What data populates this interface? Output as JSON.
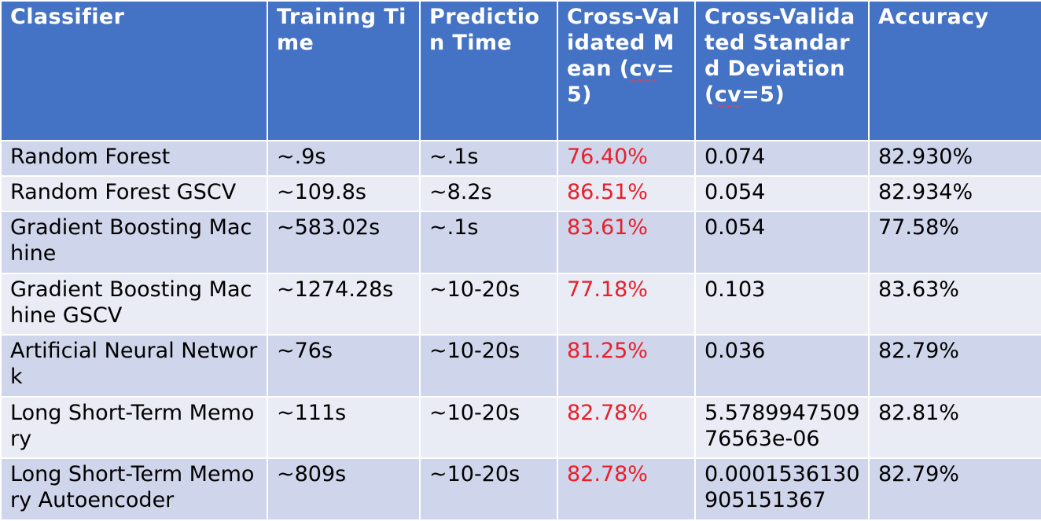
{
  "table": {
    "headers": {
      "classifier": "Classifier",
      "training_time": "Training Time",
      "prediction_time": "Prediction Time",
      "cv_mean_prefix": "Cross-Validated Mean (",
      "cv_mean_cv": "cv",
      "cv_mean_suffix": "=5)",
      "cv_std_prefix": "Cross-Validated Standard Deviation (",
      "cv_std_cv": "cv",
      "cv_std_suffix": "=5)",
      "accuracy": "Accuracy"
    },
    "rows": [
      {
        "classifier": "Random Forest",
        "training_time": "~.9s",
        "prediction_time": "~.1s",
        "cv_mean": "76.40%",
        "cv_std": "0.074",
        "accuracy": "82.930%"
      },
      {
        "classifier": "Random Forest GSCV",
        "training_time": "~109.8s",
        "prediction_time": "~8.2s",
        "cv_mean": "86.51%",
        "cv_std": "0.054",
        "accuracy": "82.934%"
      },
      {
        "classifier": "Gradient Boosting Machine",
        "training_time": "~583.02s",
        "prediction_time": "~.1s",
        "cv_mean": "83.61%",
        "cv_std": "0.054",
        "accuracy": "77.58%"
      },
      {
        "classifier": "Gradient Boosting Machine GSCV",
        "training_time": "~1274.28s",
        "prediction_time": "~10-20s",
        "cv_mean": "77.18%",
        "cv_std": "0.103",
        "accuracy": "83.63%"
      },
      {
        "classifier": "Artificial Neural Network",
        "training_time": "~76s",
        "prediction_time": "~10-20s",
        "cv_mean": "81.25%",
        "cv_std": "0.036",
        "accuracy": "82.79%"
      },
      {
        "classifier": "Long Short-Term Memory",
        "training_time": "~111s",
        "prediction_time": "~10-20s",
        "cv_mean": "82.78%",
        "cv_std": "5.578994750976563e-06",
        "accuracy": "82.81%"
      },
      {
        "classifier": "Long Short-Term Memory Autoencoder",
        "training_time": "~809s",
        "prediction_time": "~10-20s",
        "cv_mean": "82.78%",
        "cv_std": "0.0001536130905151367",
        "accuracy": "82.79%"
      }
    ]
  },
  "colors": {
    "header_bg": "#4472c4",
    "row_odd_bg": "#cfd5ea",
    "row_even_bg": "#e9ebf5",
    "cv_mean_text": "#e8202a"
  }
}
